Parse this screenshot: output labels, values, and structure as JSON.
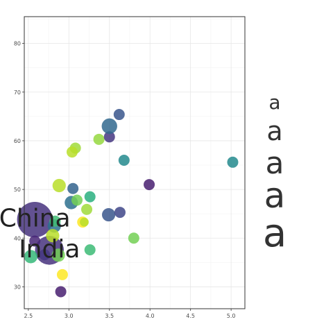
{
  "chart_data": {
    "type": "scatter",
    "title": "",
    "xlabel": "",
    "ylabel": "",
    "xlim": [
      2.45,
      5.17
    ],
    "ylim": [
      25.5,
      85.5
    ],
    "grid": true,
    "x_ticks": [
      2.5,
      3.0,
      3.5,
      4.0,
      4.5,
      5.0
    ],
    "x_tick_labels": [
      "2.5",
      "3.0",
      "3.5",
      "4.0",
      "4.5",
      "5.0"
    ],
    "y_ticks": [
      30,
      40,
      50,
      60,
      70,
      80
    ],
    "y_tick_labels": [
      "30",
      "40",
      "50",
      "60",
      "70",
      "80"
    ],
    "x_minor_ticks": [
      2.75,
      3.25,
      3.75,
      4.25,
      4.75
    ],
    "y_minor_ticks": [
      35,
      45,
      55,
      65,
      75,
      85
    ],
    "legend": {
      "position": "right",
      "glyph": "a",
      "entries": [
        {
          "label": "a",
          "size": 1
        },
        {
          "label": "a",
          "size": 2
        },
        {
          "label": "a",
          "size": 3
        },
        {
          "label": "a",
          "size": 4
        },
        {
          "label": "a",
          "size": 5
        }
      ]
    },
    "annotations": [
      {
        "text": "China",
        "x": 2.58,
        "y": 43.8
      },
      {
        "text": "India",
        "x": 2.76,
        "y": 37.5
      }
    ],
    "points": [
      {
        "x": 2.58,
        "y": 43.8,
        "size": 16,
        "color": "#46337e"
      },
      {
        "x": 2.76,
        "y": 37.5,
        "size": 13,
        "color": "#46337e"
      },
      {
        "x": 2.53,
        "y": 36.2,
        "size": 6,
        "color": "#35b779"
      },
      {
        "x": 2.58,
        "y": 39.4,
        "size": 5,
        "color": "#482677"
      },
      {
        "x": 2.7,
        "y": 36.6,
        "size": 5,
        "color": "#453781"
      },
      {
        "x": 2.82,
        "y": 42.5,
        "size": 6,
        "color": "#2d708e"
      },
      {
        "x": 2.83,
        "y": 43.5,
        "size": 5,
        "color": "#3fbc73"
      },
      {
        "x": 2.87,
        "y": 36.5,
        "size": 6,
        "color": "#73d055"
      },
      {
        "x": 2.8,
        "y": 40.5,
        "size": 6,
        "color": "#b8de29"
      },
      {
        "x": 2.9,
        "y": 29.0,
        "size": 5,
        "color": "#481f70"
      },
      {
        "x": 2.92,
        "y": 32.5,
        "size": 5,
        "color": "#fde725"
      },
      {
        "x": 2.88,
        "y": 50.8,
        "size": 6,
        "color": "#b8de29"
      },
      {
        "x": 3.03,
        "y": 47.3,
        "size": 6,
        "color": "#2d708e"
      },
      {
        "x": 3.05,
        "y": 50.2,
        "size": 5,
        "color": "#33638d"
      },
      {
        "x": 3.1,
        "y": 47.8,
        "size": 5,
        "color": "#73d055"
      },
      {
        "x": 3.17,
        "y": 43.3,
        "size": 5,
        "color": "#fde725"
      },
      {
        "x": 3.19,
        "y": 43.3,
        "size": 4,
        "color": "#b8de29"
      },
      {
        "x": 3.22,
        "y": 45.9,
        "size": 5,
        "color": "#a0da39"
      },
      {
        "x": 3.26,
        "y": 48.5,
        "size": 5,
        "color": "#29af7f"
      },
      {
        "x": 3.26,
        "y": 37.6,
        "size": 5,
        "color": "#3cbb75"
      },
      {
        "x": 3.08,
        "y": 58.5,
        "size": 5,
        "color": "#a0da39"
      },
      {
        "x": 3.04,
        "y": 57.7,
        "size": 5,
        "color": "#b8de29"
      },
      {
        "x": 3.37,
        "y": 60.3,
        "size": 5,
        "color": "#95d840"
      },
      {
        "x": 3.49,
        "y": 44.8,
        "size": 6,
        "color": "#39568c"
      },
      {
        "x": 3.5,
        "y": 60.8,
        "size": 5,
        "color": "#453781"
      },
      {
        "x": 3.5,
        "y": 63.0,
        "size": 7,
        "color": "#31688e"
      },
      {
        "x": 3.62,
        "y": 65.4,
        "size": 5,
        "color": "#39568c"
      },
      {
        "x": 3.63,
        "y": 45.3,
        "size": 5,
        "color": "#3f4788"
      },
      {
        "x": 3.68,
        "y": 56.0,
        "size": 5,
        "color": "#238a8d"
      },
      {
        "x": 3.8,
        "y": 40.0,
        "size": 5,
        "color": "#73d055"
      },
      {
        "x": 3.99,
        "y": 51.0,
        "size": 5,
        "color": "#481f70"
      },
      {
        "x": 5.02,
        "y": 55.6,
        "size": 5,
        "color": "#238a8d"
      }
    ]
  }
}
